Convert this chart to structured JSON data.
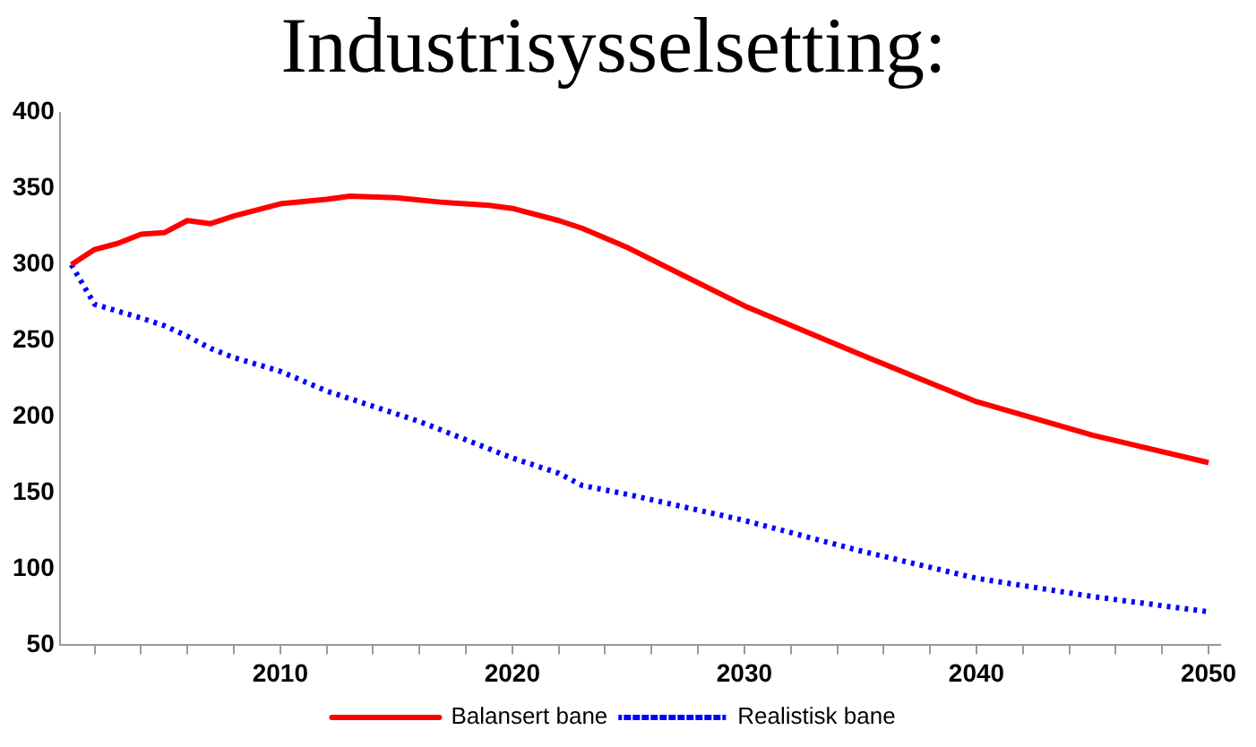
{
  "chart_data": {
    "type": "line",
    "title": "Industrisysselsetting:",
    "xlim": [
      2000.5,
      2050.5
    ],
    "xticks": [
      {
        "value": 2002,
        "label": null
      },
      {
        "value": 2004,
        "label": null
      },
      {
        "value": 2006,
        "label": null
      },
      {
        "value": 2008,
        "label": null
      },
      2010,
      {
        "value": 2012,
        "label": null
      },
      {
        "value": 2014,
        "label": null
      },
      {
        "value": 2016,
        "label": null
      },
      {
        "value": 2018,
        "label": null
      },
      2020,
      {
        "value": 2022,
        "label": null
      },
      {
        "value": 2024,
        "label": null
      },
      {
        "value": 2026,
        "label": null
      },
      {
        "value": 2028,
        "label": null
      },
      2030,
      {
        "value": 2032,
        "label": null
      },
      {
        "value": 2034,
        "label": null
      },
      {
        "value": 2036,
        "label": null
      },
      {
        "value": 2038,
        "label": null
      },
      2040,
      {
        "value": 2042,
        "label": null
      },
      {
        "value": 2044,
        "label": null
      },
      {
        "value": 2046,
        "label": null
      },
      {
        "value": 2048,
        "label": null
      },
      2050
    ],
    "ylim": [
      50,
      400
    ],
    "yticks": [
      50,
      100,
      150,
      200,
      250,
      300,
      350,
      400
    ],
    "grid": false,
    "legend": "bottom",
    "marker": "none",
    "series": [
      {
        "name": "Balansert bane",
        "color": "#ff0000",
        "line_style": "solid",
        "x": [
          2001,
          2002,
          2003,
          2004,
          2005,
          2006,
          2007,
          2008,
          2009,
          2010,
          2012,
          2013,
          2015,
          2017,
          2019,
          2020,
          2022,
          2023,
          2025,
          2030,
          2035,
          2040,
          2045,
          2050
        ],
        "values": [
          300,
          310,
          314,
          320,
          321,
          329,
          327,
          332,
          336,
          340,
          343,
          345,
          344,
          341,
          339,
          337,
          329,
          324,
          311,
          273,
          241,
          210,
          188,
          170
        ]
      },
      {
        "name": "Realistisk bane",
        "color": "#0000ff",
        "line_style": "dotted",
        "x": [
          2001,
          2002,
          2004,
          2005,
          2006,
          2007,
          2008,
          2010,
          2012,
          2014,
          2016,
          2018,
          2020,
          2022,
          2023,
          2025,
          2030,
          2035,
          2040,
          2045,
          2050
        ],
        "values": [
          300,
          274,
          265,
          260,
          253,
          245,
          239,
          230,
          217,
          207,
          197,
          185,
          173,
          163,
          155,
          149,
          132,
          112,
          94,
          82,
          72
        ]
      }
    ]
  }
}
